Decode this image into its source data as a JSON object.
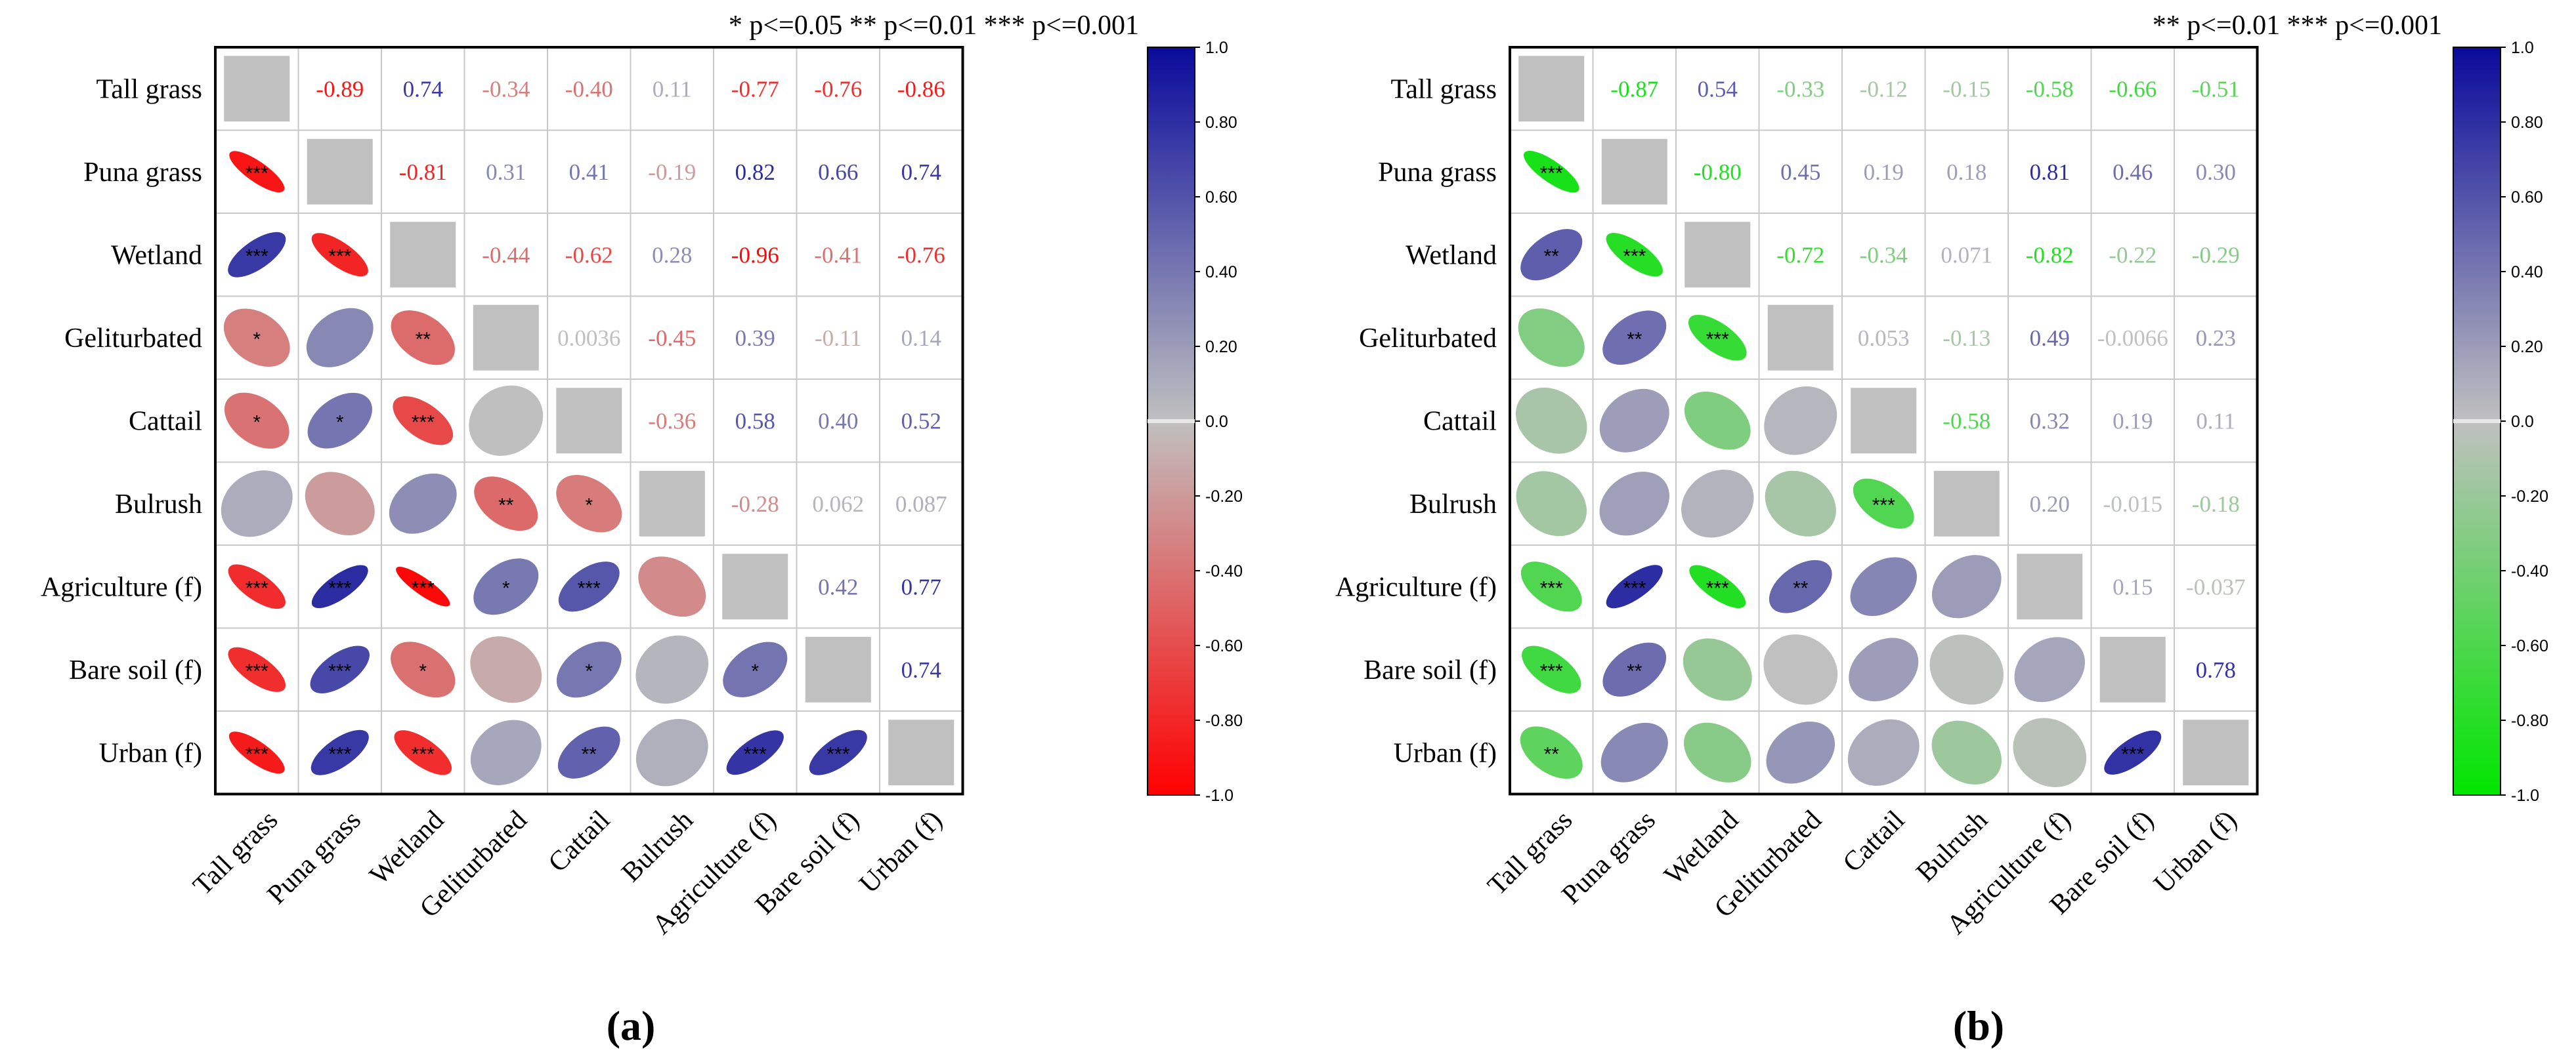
{
  "figure": {
    "panel_a_caption": "(a)",
    "panel_b_caption": "(b)"
  },
  "chart_data": [
    {
      "type": "heatmap",
      "panel": "a",
      "title": "",
      "caption": "(a)",
      "significance_legend": "* p<=0.05  ** p<=0.01  *** p<=0.001",
      "variables": [
        "Tall grass",
        "Puna grass",
        "Wetland",
        "Geliturbated",
        "Cattail",
        "Bulrush",
        "Agriculture (f)",
        "Bare soil (f)",
        "Urban (f)"
      ],
      "upper_labels": [
        [
          "",
          "-0.89",
          "0.74",
          "-0.34",
          "-0.40",
          "0.11",
          "-0.77",
          "-0.76",
          "-0.86"
        ],
        [
          "",
          "",
          "-0.81",
          "0.31",
          "0.41",
          "-0.19",
          "0.82",
          "0.66",
          "0.74"
        ],
        [
          "",
          "",
          "",
          "-0.44",
          "-0.62",
          "0.28",
          "-0.96",
          "-0.41",
          "-0.76"
        ],
        [
          "",
          "",
          "",
          "",
          "0.0036",
          "-0.45",
          "0.39",
          "-0.11",
          "0.14"
        ],
        [
          "",
          "",
          "",
          "",
          "",
          "-0.36",
          "0.58",
          "0.40",
          "0.52"
        ],
        [
          "",
          "",
          "",
          "",
          "",
          "",
          "-0.28",
          "0.062",
          "0.087"
        ],
        [
          "",
          "",
          "",
          "",
          "",
          "",
          "",
          "0.42",
          "0.77"
        ],
        [
          "",
          "",
          "",
          "",
          "",
          "",
          "",
          "",
          "0.74"
        ],
        [
          "",
          "",
          "",
          "",
          "",
          "",
          "",
          "",
          ""
        ]
      ],
      "significance": [
        [
          "",
          "",
          "",
          "",
          "",
          "",
          "",
          "",
          ""
        ],
        [
          "***",
          "",
          "",
          "",
          "",
          "",
          "",
          "",
          ""
        ],
        [
          "***",
          "***",
          "",
          "",
          "",
          "",
          "",
          "",
          ""
        ],
        [
          "*",
          "",
          "**",
          "",
          "",
          "",
          "",
          "",
          ""
        ],
        [
          "*",
          "*",
          "***",
          "",
          "",
          "",
          "",
          "",
          ""
        ],
        [
          "",
          "",
          "",
          "**",
          "*",
          "",
          "",
          "",
          ""
        ],
        [
          "***",
          "***",
          "***",
          "*",
          "***",
          "",
          "",
          "",
          ""
        ],
        [
          "***",
          "***",
          "*",
          "",
          "*",
          "",
          "*",
          "",
          ""
        ],
        [
          "***",
          "***",
          "***",
          "",
          "**",
          "",
          "***",
          "***",
          ""
        ]
      ],
      "colorbar": {
        "range": [
          -1.0,
          1.0
        ],
        "ticks": [
          "1.0",
          "0.80",
          "0.60",
          "0.40",
          "0.20",
          "0.0",
          "-0.20",
          "-0.40",
          "-0.60",
          "-0.80",
          "-1.0"
        ],
        "colors": {
          "negative": "#ff0000",
          "neutral": "#c0c0c0",
          "positive": "#0a0a9c"
        }
      }
    },
    {
      "type": "heatmap",
      "panel": "b",
      "title": "",
      "caption": "(b)",
      "significance_legend": "** p<=0.01  *** p<=0.001",
      "variables": [
        "Tall grass",
        "Puna grass",
        "Wetland",
        "Geliturbated",
        "Cattail",
        "Bulrush",
        "Agriculture (f)",
        "Bare soil (f)",
        "Urban (f)"
      ],
      "upper_labels": [
        [
          "",
          "-0.87",
          "0.54",
          "-0.33",
          "-0.12",
          "-0.15",
          "-0.58",
          "-0.66",
          "-0.51"
        ],
        [
          "",
          "",
          "-0.80",
          "0.45",
          "0.19",
          "0.18",
          "0.81",
          "0.46",
          "0.30"
        ],
        [
          "",
          "",
          "",
          "-0.72",
          "-0.34",
          "0.071",
          "-0.82",
          "-0.22",
          "-0.29"
        ],
        [
          "",
          "",
          "",
          "",
          "0.053",
          "-0.13",
          "0.49",
          "-0.0066",
          "0.23"
        ],
        [
          "",
          "",
          "",
          "",
          "",
          "-0.58",
          "0.32",
          "0.19",
          "0.11"
        ],
        [
          "",
          "",
          "",
          "",
          "",
          "",
          "0.20",
          "-0.015",
          "-0.18"
        ],
        [
          "",
          "",
          "",
          "",
          "",
          "",
          "",
          "0.15",
          "-0.037"
        ],
        [
          "",
          "",
          "",
          "",
          "",
          "",
          "",
          "",
          "0.78"
        ],
        [
          "",
          "",
          "",
          "",
          "",
          "",
          "",
          "",
          ""
        ]
      ],
      "significance": [
        [
          "",
          "",
          "",
          "",
          "",
          "",
          "",
          "",
          ""
        ],
        [
          "***",
          "",
          "",
          "",
          "",
          "",
          "",
          "",
          ""
        ],
        [
          "**",
          "***",
          "",
          "",
          "",
          "",
          "",
          "",
          ""
        ],
        [
          "",
          "**",
          "***",
          "",
          "",
          "",
          "",
          "",
          ""
        ],
        [
          "",
          "",
          "",
          "",
          "",
          "",
          "",
          "",
          ""
        ],
        [
          "",
          "",
          "",
          "",
          "***",
          "",
          "",
          "",
          ""
        ],
        [
          "***",
          "***",
          "***",
          "**",
          "",
          "",
          "",
          "",
          ""
        ],
        [
          "***",
          "**",
          "",
          "",
          "",
          "",
          "",
          "",
          ""
        ],
        [
          "**",
          "",
          "",
          "",
          "",
          "",
          "",
          "***",
          ""
        ]
      ],
      "colorbar": {
        "range": [
          -1.0,
          1.0
        ],
        "ticks": [
          "1.0",
          "0.80",
          "0.60",
          "0.40",
          "0.20",
          "0.0",
          "-0.20",
          "-0.40",
          "-0.60",
          "-0.80",
          "-1.0"
        ],
        "colors": {
          "negative": "#00e600",
          "neutral": "#c0c0c0",
          "positive": "#0a0a9c"
        }
      }
    }
  ]
}
